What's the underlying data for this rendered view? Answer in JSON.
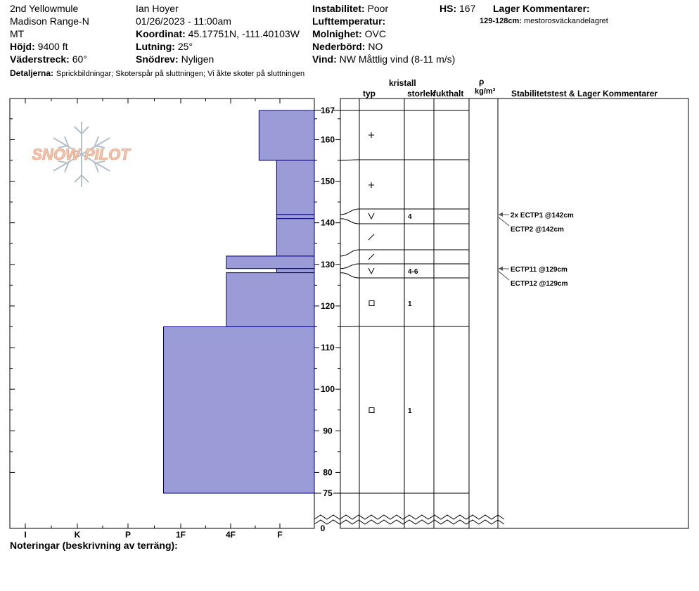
{
  "header": {
    "location": "2nd Yellowmule",
    "range": "Madison Range-N",
    "state": "MT",
    "elevation_label": "Höjd:",
    "elevation": "9400 ft",
    "aspect_label": "Väderstreck:",
    "aspect": "60°",
    "observer": "Ian Hoyer",
    "datetime": "01/26/2023 - 11:00am",
    "coord_label": "Koordinat:",
    "coord": "45.17751N, -111.40103W",
    "slope_label": "Lutning:",
    "slope": "25°",
    "drift_label": "Snödrev:",
    "drift": "Nyligen",
    "instability_label": "Instabilitet:",
    "instability": "Poor",
    "airtemp_label": "Lufttemperatur:",
    "airtemp": "",
    "sky_label": "Molnighet:",
    "sky": "OVC",
    "precip_label": "Nederbörd:",
    "precip": "NO",
    "wind_label": "Vind:",
    "wind": "NW Måttlig vind (8-11 m/s)",
    "hs_label": "HS:",
    "hs": "167",
    "layer_comments_label": "Lager Kommentarer:",
    "layer_comment_range": "129-128cm:",
    "layer_comment_text": "mestorosväckandelagret",
    "details_label": "Detaljerna:",
    "details_text": "Sprickbildningar;  Skoterspår på sluttningen;  Vi åkte skoter på sluttningen"
  },
  "footer": {
    "notes_label": "Noteringar (beskrivning av terräng):"
  },
  "logo_text": "SNOW PILOT",
  "columns": {
    "crystal": "kristall",
    "type": "typ",
    "size": "storlek",
    "moisture": "fukthalt",
    "rho": "ρ",
    "density_unit": "kg/m³",
    "stability": "Stabilitetstest & Lager Kommentarer"
  },
  "colors": {
    "hardness_fill": "#9b9bd7",
    "hardness_stroke": "#00007f",
    "line": "#000000"
  },
  "chart_data": {
    "type": "snow_profile",
    "hs": 167,
    "height_axis": {
      "ticks": [
        80,
        90,
        100,
        110,
        120,
        130,
        140,
        150,
        160
      ],
      "top_label": "167",
      "bottom_label": "75",
      "zero_label": "0",
      "display_range": [
        75,
        167
      ]
    },
    "hardness_axis": {
      "labels": [
        "I",
        "K",
        "P",
        "1F",
        "4F",
        "F"
      ]
    },
    "hardness_layers": [
      {
        "top": 167,
        "bottom": 155,
        "hardness": 1.1
      },
      {
        "top": 155,
        "bottom": 142,
        "hardness": 0.75
      },
      {
        "top": 142,
        "bottom": 141,
        "hardness": 0.75
      },
      {
        "top": 141,
        "bottom": 132,
        "hardness": 0.75
      },
      {
        "top": 132,
        "bottom": 129,
        "hardness": 1.75
      },
      {
        "top": 129,
        "bottom": 128,
        "hardness": 0.75
      },
      {
        "top": 128,
        "bottom": 115,
        "hardness": 1.75
      },
      {
        "top": 115,
        "bottom": 75,
        "hardness": 3.0
      }
    ],
    "layer_boundaries": [
      167,
      155,
      142,
      140,
      133,
      130,
      127,
      115,
      75
    ],
    "grain_rows": [
      {
        "height": 160.5,
        "symbol": "+",
        "size": ""
      },
      {
        "height": 149.5,
        "symbol": "+",
        "size": ""
      },
      {
        "height": 141,
        "symbol": "V",
        "size": "4"
      },
      {
        "height": 136.5,
        "symbol": "/",
        "size": ""
      },
      {
        "height": 131.5,
        "symbol": "/",
        "size": ""
      },
      {
        "height": 128.5,
        "symbol": "V",
        "size": "4-6"
      },
      {
        "height": 121,
        "symbol": "□",
        "size": "1"
      },
      {
        "height": 95,
        "symbol": "□",
        "size": "1"
      }
    ],
    "stability_tests": [
      {
        "label": "2x ECTP1 @142cm",
        "height": 142
      },
      {
        "label": "ECTP2 @142cm",
        "height": 142
      },
      {
        "label": "ECTP11 @129cm",
        "height": 129
      },
      {
        "label": "ECTP12 @129cm",
        "height": 129
      }
    ]
  }
}
